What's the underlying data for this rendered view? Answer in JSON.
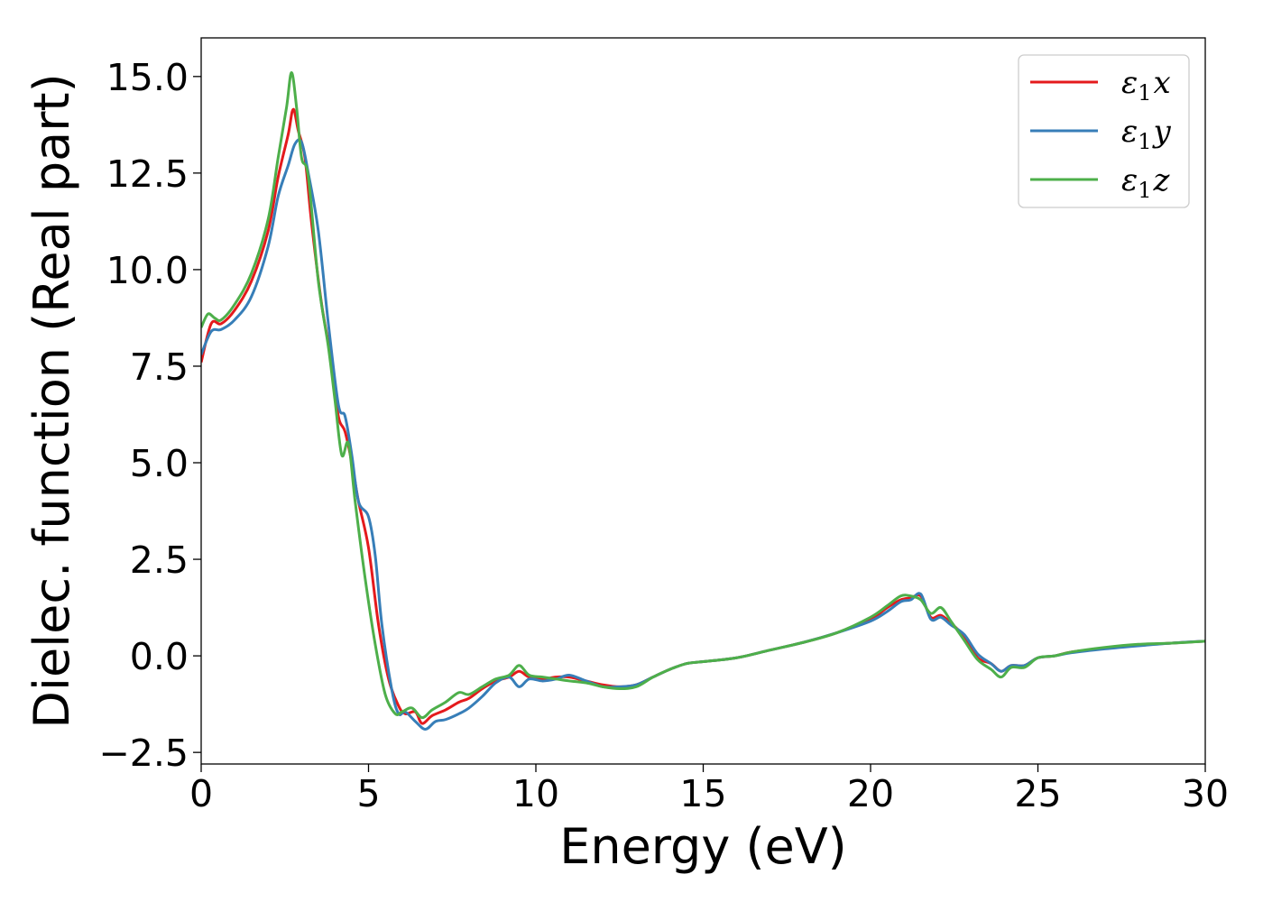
{
  "chart_data": {
    "type": "line",
    "xlabel": "Energy (eV)",
    "ylabel": "Dielec. function (Real part)",
    "xlim": [
      0,
      30
    ],
    "ylim": [
      -2.8,
      16.0
    ],
    "xticks": [
      0,
      5,
      10,
      15,
      20,
      25,
      30
    ],
    "xtick_labels": [
      "0",
      "5",
      "10",
      "15",
      "20",
      "25",
      "30"
    ],
    "yticks": [
      -2.5,
      0.0,
      2.5,
      5.0,
      7.5,
      10.0,
      12.5,
      15.0
    ],
    "ytick_labels": [
      "−2.5",
      "0.0",
      "2.5",
      "5.0",
      "7.5",
      "10.0",
      "12.5",
      "15.0"
    ],
    "grid": false,
    "legend_position": "top-right",
    "series": [
      {
        "name": "ε₁x",
        "legend_base": "ε",
        "legend_sub": "1",
        "legend_suffix": "x",
        "color": "#e41a1c",
        "x": [
          0,
          0.3,
          0.6,
          1.0,
          1.5,
          2.0,
          2.3,
          2.6,
          2.75,
          2.9,
          3.1,
          3.3,
          3.6,
          3.9,
          4.1,
          4.3,
          4.5,
          4.7,
          5.0,
          5.3,
          5.6,
          5.9,
          6.1,
          6.4,
          6.6,
          6.9,
          7.3,
          7.7,
          8.0,
          8.4,
          8.8,
          9.2,
          9.5,
          9.8,
          10.2,
          10.6,
          11.0,
          11.5,
          12.0,
          12.5,
          13.0,
          13.5,
          14.0,
          14.5,
          15.0,
          16.0,
          17.0,
          18.0,
          19.0,
          20.0,
          20.5,
          20.9,
          21.2,
          21.5,
          21.8,
          22.1,
          22.4,
          22.8,
          23.2,
          23.6,
          23.9,
          24.2,
          24.6,
          25.0,
          25.5,
          26.0,
          27.0,
          28.0,
          29.0,
          30.0
        ],
        "y": [
          7.6,
          8.6,
          8.6,
          8.95,
          9.7,
          11.0,
          12.4,
          13.5,
          14.15,
          13.6,
          12.9,
          11.2,
          9.1,
          7.6,
          6.2,
          5.8,
          5.0,
          4.0,
          2.8,
          0.8,
          -0.6,
          -1.3,
          -1.5,
          -1.45,
          -1.75,
          -1.55,
          -1.4,
          -1.2,
          -1.1,
          -0.85,
          -0.65,
          -0.55,
          -0.4,
          -0.55,
          -0.6,
          -0.55,
          -0.55,
          -0.65,
          -0.75,
          -0.8,
          -0.75,
          -0.55,
          -0.35,
          -0.2,
          -0.15,
          -0.05,
          0.15,
          0.35,
          0.6,
          0.95,
          1.25,
          1.45,
          1.5,
          1.55,
          1.0,
          1.05,
          0.85,
          0.5,
          -0.05,
          -0.2,
          -0.4,
          -0.25,
          -0.25,
          -0.05,
          0.0,
          0.1,
          0.2,
          0.28,
          0.33,
          0.38
        ]
      },
      {
        "name": "ε₁y",
        "legend_base": "ε",
        "legend_sub": "1",
        "legend_suffix": "y",
        "color": "#377eb8",
        "x": [
          0,
          0.3,
          0.6,
          1.0,
          1.5,
          2.0,
          2.3,
          2.6,
          2.8,
          3.0,
          3.2,
          3.5,
          3.8,
          4.1,
          4.3,
          4.5,
          4.7,
          5.0,
          5.2,
          5.4,
          5.7,
          5.9,
          6.1,
          6.4,
          6.7,
          7.0,
          7.3,
          7.7,
          8.0,
          8.4,
          8.8,
          9.2,
          9.5,
          9.8,
          10.2,
          10.6,
          11.0,
          11.5,
          12.0,
          12.5,
          13.0,
          13.5,
          14.0,
          14.5,
          15.0,
          16.0,
          17.0,
          18.0,
          19.0,
          20.0,
          20.5,
          20.9,
          21.2,
          21.5,
          21.8,
          22.1,
          22.4,
          22.8,
          23.2,
          23.6,
          23.9,
          24.2,
          24.6,
          25.0,
          25.5,
          26.0,
          27.0,
          28.0,
          29.0,
          30.0
        ],
        "y": [
          7.8,
          8.4,
          8.45,
          8.7,
          9.3,
          10.6,
          11.9,
          12.7,
          13.25,
          13.3,
          12.5,
          11.0,
          8.6,
          6.5,
          6.2,
          5.2,
          4.0,
          3.6,
          2.6,
          0.8,
          -0.9,
          -1.5,
          -1.45,
          -1.7,
          -1.9,
          -1.7,
          -1.65,
          -1.5,
          -1.35,
          -1.05,
          -0.7,
          -0.55,
          -0.8,
          -0.6,
          -0.65,
          -0.6,
          -0.5,
          -0.65,
          -0.8,
          -0.8,
          -0.75,
          -0.55,
          -0.35,
          -0.2,
          -0.15,
          -0.05,
          0.15,
          0.35,
          0.6,
          0.9,
          1.15,
          1.4,
          1.45,
          1.6,
          0.95,
          1.0,
          0.8,
          0.55,
          0.05,
          -0.2,
          -0.4,
          -0.25,
          -0.25,
          -0.05,
          0.0,
          0.08,
          0.18,
          0.26,
          0.33,
          0.38
        ]
      },
      {
        "name": "ε₁z",
        "legend_base": "ε",
        "legend_sub": "1",
        "legend_suffix": "z",
        "color": "#4daf4a",
        "x": [
          0,
          0.2,
          0.4,
          0.6,
          1.0,
          1.5,
          2.0,
          2.3,
          2.55,
          2.7,
          2.85,
          3.0,
          3.2,
          3.5,
          3.8,
          4.0,
          4.2,
          4.4,
          4.6,
          4.9,
          5.2,
          5.5,
          5.8,
          6.0,
          6.3,
          6.6,
          6.9,
          7.3,
          7.7,
          8.0,
          8.4,
          8.8,
          9.2,
          9.5,
          9.8,
          10.2,
          10.6,
          11.0,
          11.5,
          12.0,
          12.5,
          13.0,
          13.5,
          14.0,
          14.5,
          15.0,
          16.0,
          17.0,
          18.0,
          19.0,
          20.0,
          20.5,
          20.9,
          21.2,
          21.5,
          21.8,
          22.1,
          22.4,
          22.8,
          23.2,
          23.6,
          23.9,
          24.2,
          24.6,
          25.0,
          25.5,
          26.0,
          27.0,
          28.0,
          29.0,
          30.0
        ],
        "y": [
          8.5,
          8.85,
          8.75,
          8.7,
          9.1,
          9.9,
          11.3,
          12.9,
          14.2,
          15.1,
          14.2,
          12.9,
          12.4,
          9.7,
          8.0,
          6.6,
          5.2,
          5.5,
          4.0,
          2.0,
          0.3,
          -1.0,
          -1.5,
          -1.45,
          -1.35,
          -1.6,
          -1.4,
          -1.2,
          -0.95,
          -1.0,
          -0.8,
          -0.6,
          -0.5,
          -0.25,
          -0.5,
          -0.55,
          -0.6,
          -0.65,
          -0.7,
          -0.8,
          -0.85,
          -0.8,
          -0.55,
          -0.35,
          -0.2,
          -0.15,
          -0.05,
          0.15,
          0.35,
          0.6,
          1.0,
          1.3,
          1.55,
          1.55,
          1.45,
          1.1,
          1.25,
          0.9,
          0.4,
          -0.1,
          -0.35,
          -0.55,
          -0.3,
          -0.3,
          -0.05,
          0.0,
          0.1,
          0.22,
          0.3,
          0.33,
          0.38
        ]
      }
    ]
  }
}
